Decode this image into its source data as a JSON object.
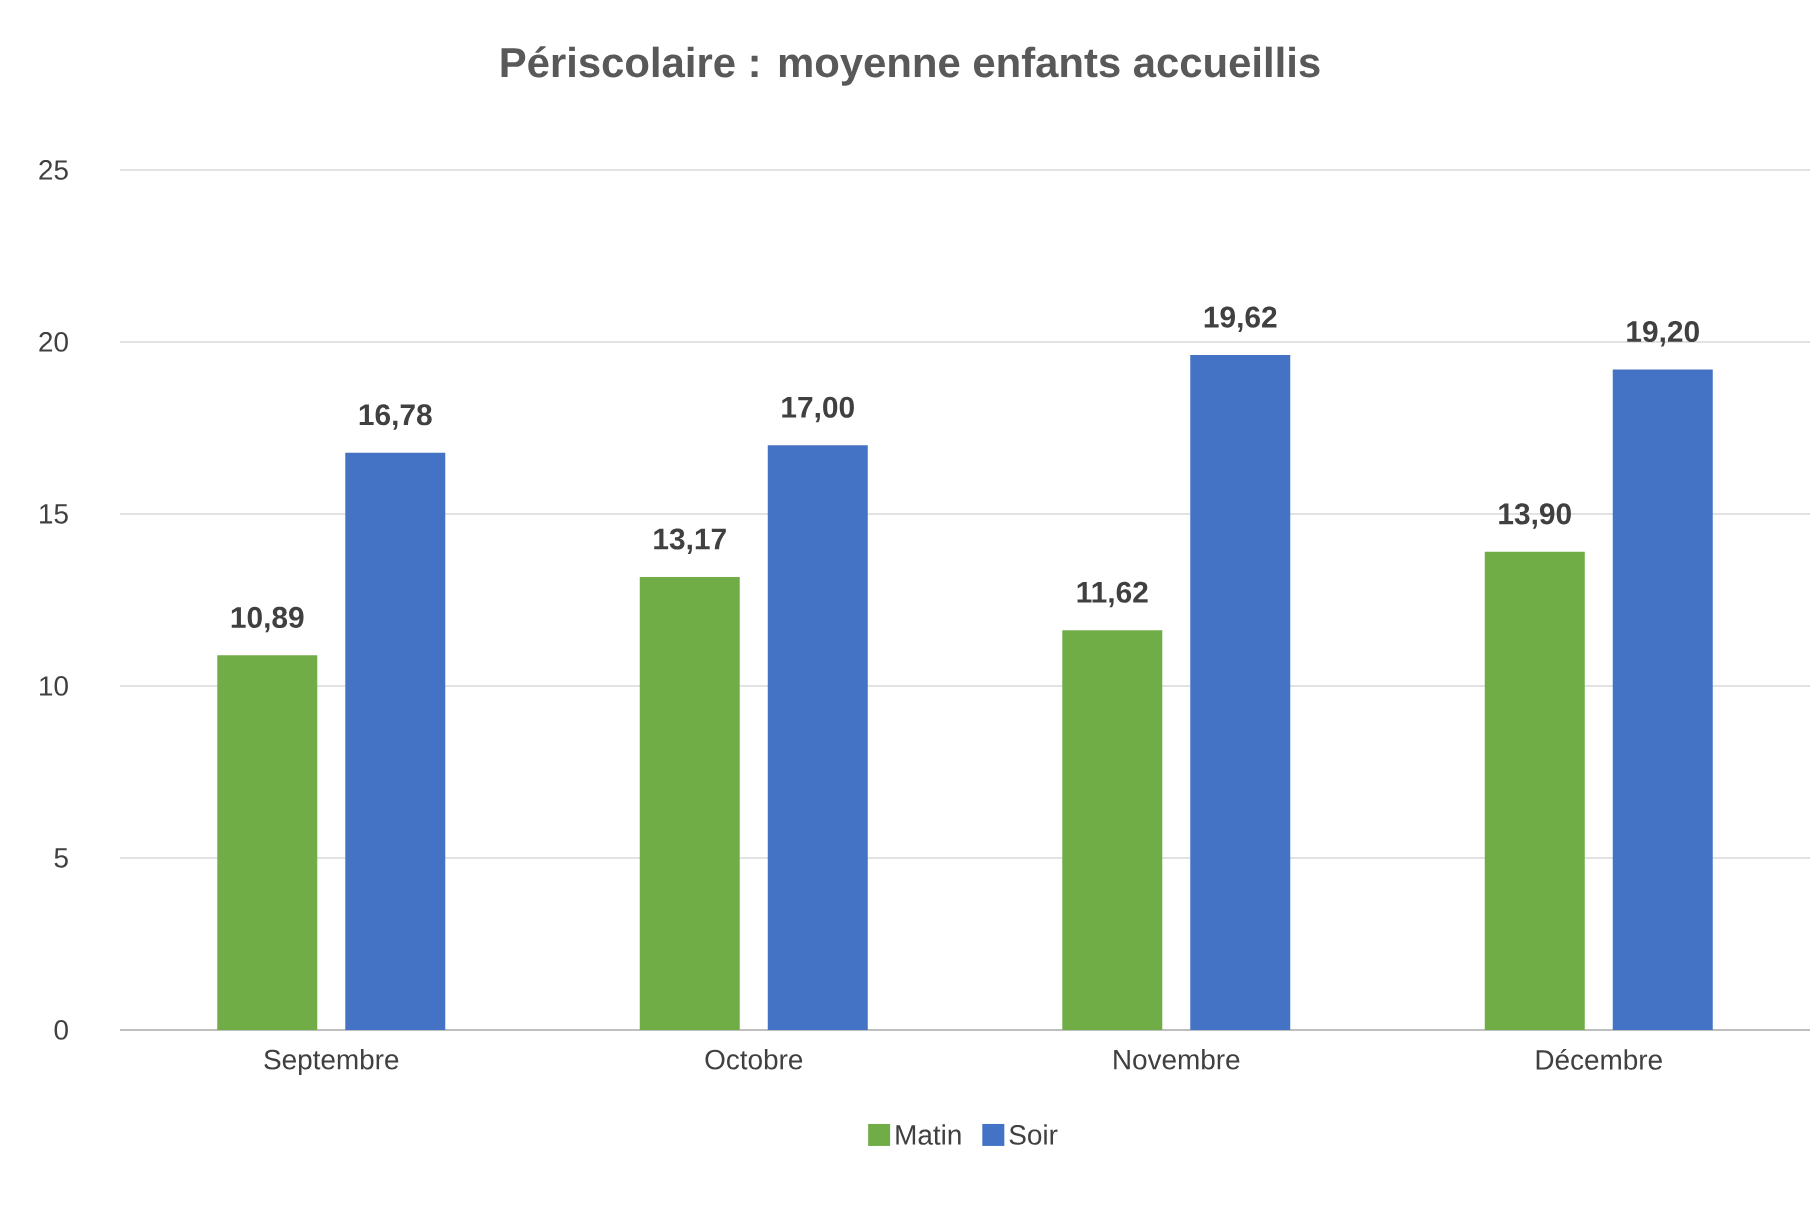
{
  "chart_data": {
    "type": "bar",
    "title": "Périscolaire : moyenne enfants accueillis",
    "categories": [
      "Septembre",
      "Octobre",
      "Novembre",
      "Décembre"
    ],
    "series": [
      {
        "name": "Matin",
        "color": "#70ad47",
        "values": [
          10.89,
          13.17,
          11.62,
          13.9
        ],
        "value_labels": [
          "10,89",
          "13,17",
          "11,62",
          "13,90"
        ]
      },
      {
        "name": "Soir",
        "color": "#4472c4",
        "values": [
          16.78,
          17.0,
          19.62,
          19.2
        ],
        "value_labels": [
          "16,78",
          "17,00",
          "19,62",
          "19,20"
        ]
      }
    ],
    "ylim": [
      0,
      25
    ],
    "yticks": [
      0,
      5,
      10,
      15,
      20,
      25
    ],
    "grid": "y",
    "legend": "bottom"
  }
}
